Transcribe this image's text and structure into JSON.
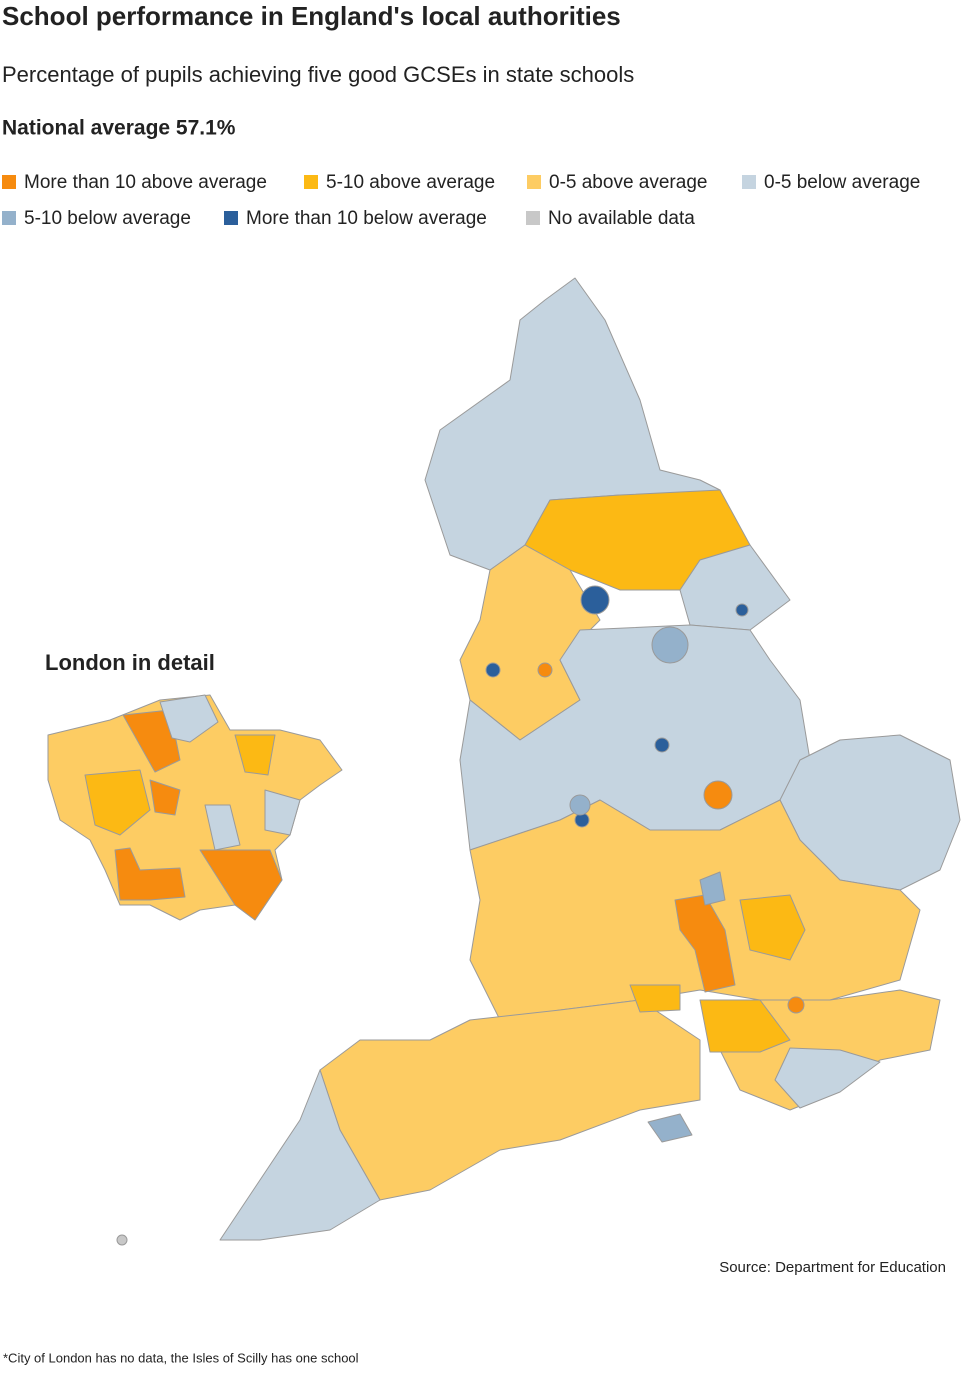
{
  "header": {
    "title": "School performance in England's local authorities",
    "subtitle": "Percentage of pupils achieving five good GCSEs in state schools",
    "national_average": "National average 57.1%"
  },
  "legend": [
    {
      "label": "More than 10 above average",
      "color": "#f68b0f"
    },
    {
      "label": "5-10 above average",
      "color": "#fcb914"
    },
    {
      "label": "0-5 above average",
      "color": "#fdcc63"
    },
    {
      "label": "0-5 below average",
      "color": "#c5d4e0"
    },
    {
      "label": "5-10 below average",
      "color": "#94b1cb"
    },
    {
      "label": "More than 10 below average",
      "color": "#2b5f9b"
    },
    {
      "label": "No available data",
      "color": "#c8c8c8"
    }
  ],
  "inset": {
    "title": "London in detail"
  },
  "source": "Source: Department for Education",
  "footnote": "*City of London has no data, the Isles of Scilly has one school"
}
